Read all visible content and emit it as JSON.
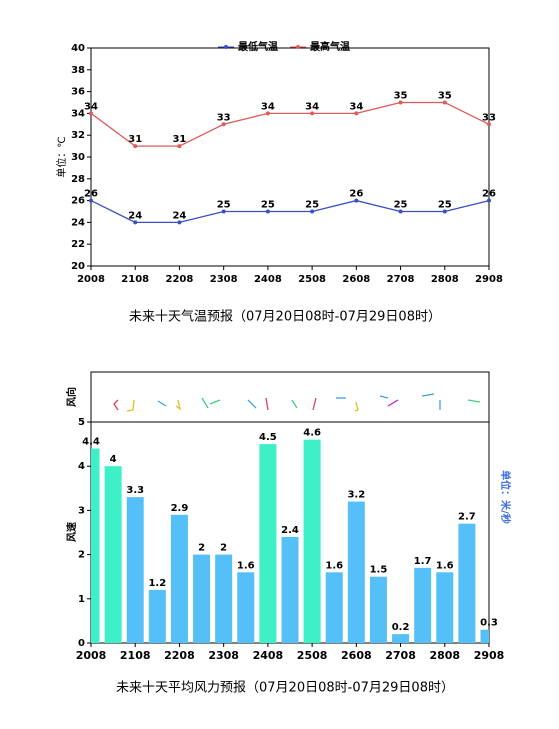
{
  "chart_data": [
    {
      "type": "line",
      "title": "未来十天气温预报（07月20日08时-07月29日08时）",
      "ylabel": "单位：℃",
      "categories": [
        "2008",
        "2108",
        "2208",
        "2308",
        "2408",
        "2508",
        "2608",
        "2708",
        "2808",
        "2908"
      ],
      "series": [
        {
          "name": "最低气温",
          "color": "#3a4fc4",
          "values": [
            26,
            24,
            24,
            25,
            25,
            25,
            26,
            25,
            25,
            26
          ]
        },
        {
          "name": "最高气温",
          "color": "#e05a5a",
          "values": [
            34,
            31,
            31,
            33,
            34,
            34,
            34,
            35,
            35,
            33
          ]
        }
      ],
      "ylim": [
        20,
        40
      ],
      "yticks": [
        20,
        22,
        24,
        26,
        28,
        30,
        32,
        34,
        36,
        38,
        40
      ],
      "legend": "top"
    },
    {
      "type": "bar",
      "title": "未来十天平均风力预报（07月20日08时-07月29日08时）",
      "ylabel": "风速",
      "y2label": "单位：米/秒",
      "panel_label": "风向",
      "categories": [
        "2008",
        null,
        "2108",
        null,
        "2208",
        null,
        "2308",
        null,
        "2408",
        null,
        "2508",
        null,
        "2608",
        null,
        "2708",
        null,
        "2808",
        null,
        "2908"
      ],
      "values": [
        4.4,
        4.0,
        3.3,
        1.2,
        2.9,
        2.0,
        2.0,
        1.6,
        4.5,
        2.4,
        4.6,
        1.6,
        3.2,
        1.5,
        0.2,
        1.7,
        1.6,
        2.7,
        0.3
      ],
      "colors": [
        "#3ef0c8",
        "#3ef0c8",
        "#55c0f8",
        "#55c0f8",
        "#55c0f8",
        "#55c0f8",
        "#55c0f8",
        "#55c0f8",
        "#3ef0c8",
        "#55c0f8",
        "#3ef0c8",
        "#55c0f8",
        "#55c0f8",
        "#55c0f8",
        "#55c0f8",
        "#55c0f8",
        "#55c0f8",
        "#55c0f8",
        "#55c0f8"
      ],
      "ylim": [
        0,
        5
      ],
      "yticks": [
        0,
        1,
        2,
        3,
        4,
        5
      ]
    }
  ]
}
